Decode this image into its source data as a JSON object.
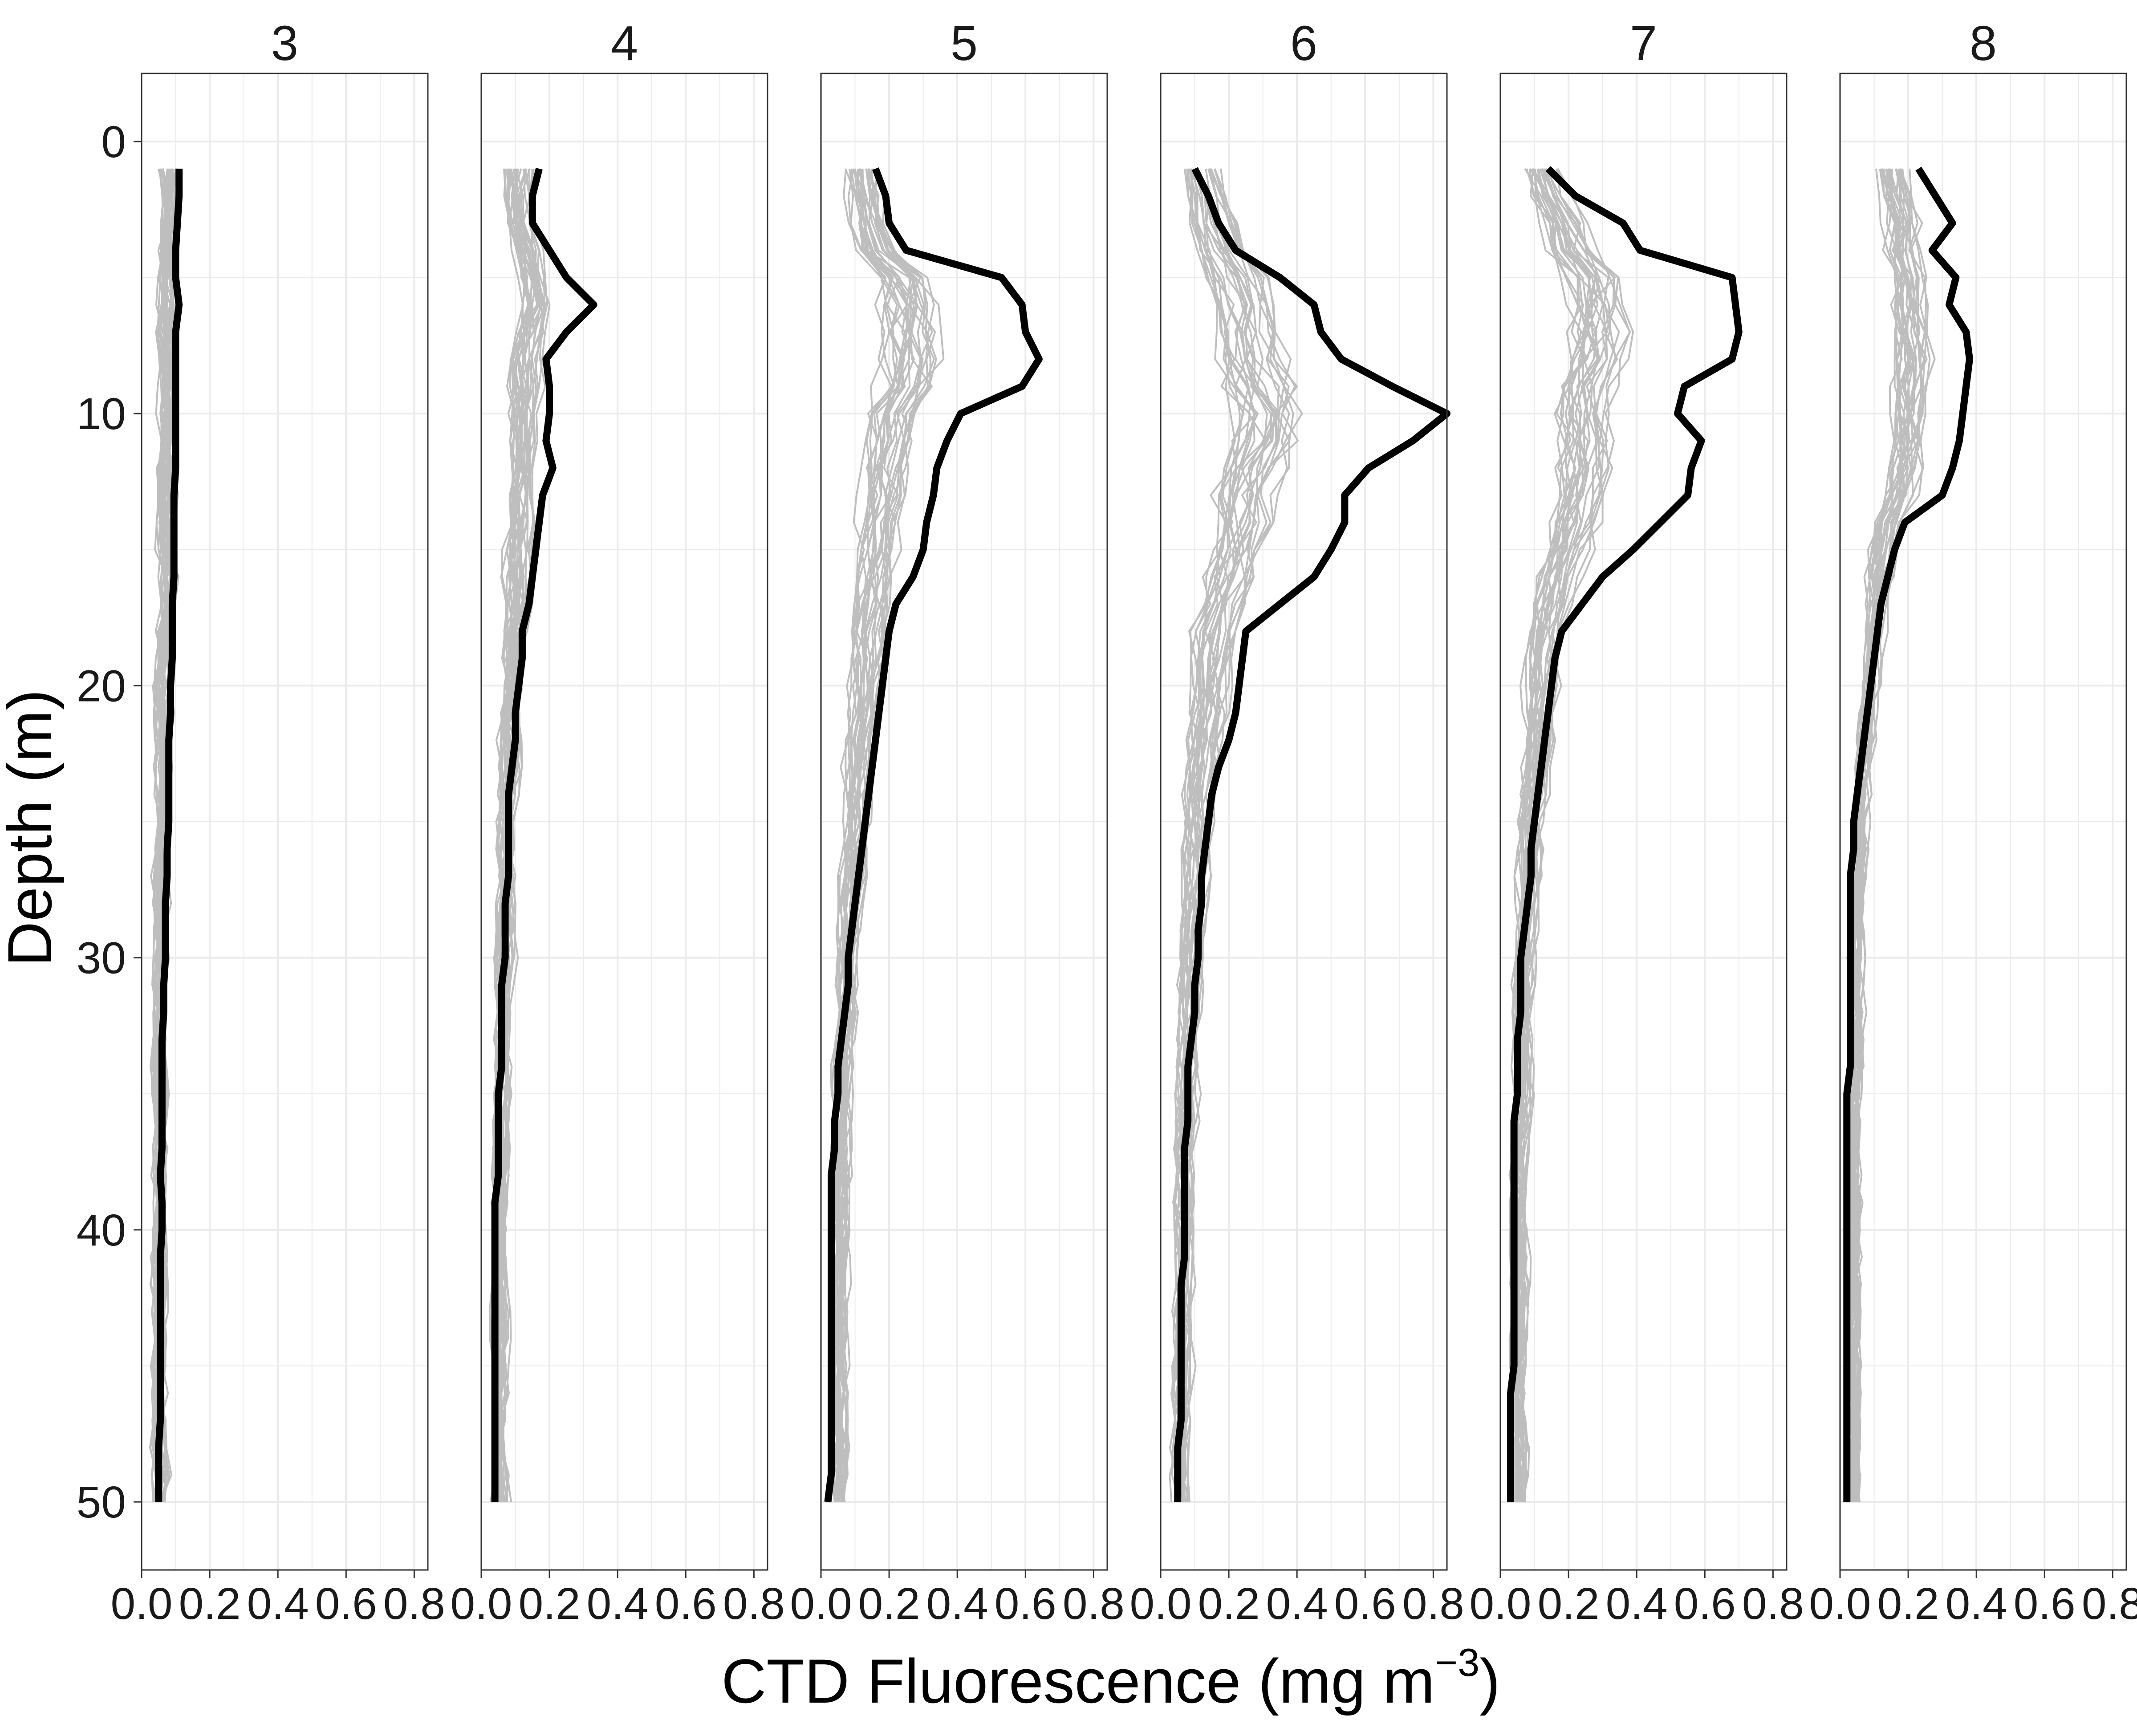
{
  "chart_data": {
    "type": "line",
    "layout": "faceted",
    "xlabel": "CTD Fluorescence (mg m",
    "xlabel_superscript": "−3",
    "xlabel_suffix": ")",
    "ylabel": "Depth (m)",
    "y_reversed": true,
    "ylim": [
      52.5,
      -2.5
    ],
    "xlim": [
      0,
      0.84
    ],
    "yticks": [
      0,
      10,
      20,
      30,
      40,
      50
    ],
    "xticks": [
      0.0,
      0.2,
      0.4,
      0.6,
      0.8
    ],
    "xtick_labels": [
      "0.0",
      "0.2",
      "0.4",
      "0.6",
      "0.8"
    ],
    "xtick_label_text": "0.02.04.06.08.0",
    "grid": true,
    "colors": {
      "mean_line": "#000000",
      "individual_profiles": "#bebebe",
      "grid": "#ebebeb",
      "panel_border": "#333333"
    },
    "depths": [
      1,
      2,
      3,
      4,
      5,
      6,
      7,
      8,
      9,
      10,
      11,
      12,
      13,
      14,
      15,
      16,
      17,
      18,
      19,
      20,
      21,
      22,
      23,
      24,
      25,
      26,
      27,
      28,
      29,
      30,
      31,
      32,
      33,
      34,
      35,
      36,
      37,
      38,
      39,
      40,
      41,
      42,
      43,
      44,
      45,
      46,
      47,
      48,
      49,
      50
    ],
    "panels": [
      {
        "label": "3",
        "mean_fluorescence": [
          0.11,
          0.11,
          0.105,
          0.1,
          0.1,
          0.11,
          0.1,
          0.1,
          0.1,
          0.1,
          0.1,
          0.1,
          0.095,
          0.095,
          0.095,
          0.095,
          0.09,
          0.09,
          0.09,
          0.085,
          0.085,
          0.08,
          0.08,
          0.08,
          0.08,
          0.075,
          0.075,
          0.07,
          0.07,
          0.07,
          0.065,
          0.065,
          0.06,
          0.06,
          0.06,
          0.06,
          0.06,
          0.055,
          0.06,
          0.06,
          0.055,
          0.055,
          0.055,
          0.055,
          0.055,
          0.055,
          0.055,
          0.05,
          0.05,
          0.05
        ],
        "profile_spread": [
          0.06,
          0.06,
          0.06,
          0.05,
          0.05,
          0.05,
          0.05,
          0.05,
          0.05,
          0.05,
          0.05,
          0.05,
          0.05,
          0.05,
          0.05,
          0.06,
          0.06,
          0.04,
          0.04,
          0.04,
          0.04,
          0.04,
          0.04,
          0.04,
          0.04,
          0.03,
          0.03,
          0.03,
          0.03,
          0.03,
          0.03,
          0.03,
          0.03,
          0.03,
          0.03,
          0.03,
          0.03,
          0.03,
          0.03,
          0.03,
          0.03,
          0.03,
          0.03,
          0.03,
          0.03,
          0.03,
          0.03,
          0.03,
          0.04,
          0.03
        ]
      },
      {
        "label": "4",
        "mean_fluorescence": [
          0.17,
          0.15,
          0.15,
          0.2,
          0.25,
          0.33,
          0.25,
          0.19,
          0.2,
          0.2,
          0.19,
          0.21,
          0.18,
          0.17,
          0.16,
          0.15,
          0.14,
          0.12,
          0.12,
          0.11,
          0.1,
          0.1,
          0.09,
          0.08,
          0.08,
          0.08,
          0.08,
          0.07,
          0.07,
          0.07,
          0.06,
          0.06,
          0.06,
          0.06,
          0.05,
          0.05,
          0.05,
          0.05,
          0.04,
          0.04,
          0.04,
          0.04,
          0.04,
          0.04,
          0.04,
          0.04,
          0.04,
          0.04,
          0.04,
          0.04
        ],
        "profile_spread": [
          0.09,
          0.09,
          0.1,
          0.12,
          0.13,
          0.13,
          0.12,
          0.11,
          0.11,
          0.1,
          0.1,
          0.1,
          0.1,
          0.1,
          0.09,
          0.09,
          0.09,
          0.08,
          0.08,
          0.08,
          0.07,
          0.07,
          0.07,
          0.06,
          0.06,
          0.06,
          0.06,
          0.06,
          0.05,
          0.05,
          0.05,
          0.05,
          0.05,
          0.05,
          0.05,
          0.04,
          0.04,
          0.04,
          0.04,
          0.04,
          0.04,
          0.04,
          0.04,
          0.04,
          0.04,
          0.04,
          0.04,
          0.04,
          0.04,
          0.04
        ]
      },
      {
        "label": "5",
        "mean_fluorescence": [
          0.16,
          0.19,
          0.2,
          0.25,
          0.53,
          0.59,
          0.6,
          0.64,
          0.59,
          0.41,
          0.37,
          0.34,
          0.33,
          0.31,
          0.3,
          0.27,
          0.22,
          0.2,
          0.19,
          0.18,
          0.17,
          0.16,
          0.15,
          0.14,
          0.13,
          0.12,
          0.11,
          0.1,
          0.09,
          0.08,
          0.08,
          0.07,
          0.06,
          0.05,
          0.05,
          0.04,
          0.04,
          0.03,
          0.03,
          0.03,
          0.03,
          0.03,
          0.03,
          0.03,
          0.03,
          0.03,
          0.03,
          0.03,
          0.03,
          0.02
        ],
        "profile_spread": [
          0.1,
          0.11,
          0.12,
          0.14,
          0.17,
          0.18,
          0.19,
          0.19,
          0.18,
          0.17,
          0.16,
          0.15,
          0.15,
          0.14,
          0.14,
          0.13,
          0.13,
          0.12,
          0.12,
          0.11,
          0.11,
          0.1,
          0.1,
          0.09,
          0.09,
          0.08,
          0.08,
          0.07,
          0.07,
          0.06,
          0.06,
          0.06,
          0.05,
          0.05,
          0.05,
          0.05,
          0.05,
          0.05,
          0.04,
          0.04,
          0.04,
          0.04,
          0.04,
          0.04,
          0.04,
          0.04,
          0.04,
          0.04,
          0.04,
          0.04
        ]
      },
      {
        "label": "6",
        "mean_fluorescence": [
          0.1,
          0.14,
          0.17,
          0.22,
          0.35,
          0.45,
          0.47,
          0.53,
          0.68,
          0.84,
          0.74,
          0.61,
          0.54,
          0.54,
          0.5,
          0.45,
          0.35,
          0.25,
          0.24,
          0.23,
          0.22,
          0.2,
          0.17,
          0.15,
          0.14,
          0.13,
          0.12,
          0.12,
          0.11,
          0.11,
          0.1,
          0.1,
          0.09,
          0.08,
          0.08,
          0.08,
          0.07,
          0.07,
          0.07,
          0.07,
          0.07,
          0.06,
          0.06,
          0.06,
          0.06,
          0.06,
          0.06,
          0.05,
          0.05,
          0.05
        ],
        "profile_spread": [
          0.12,
          0.14,
          0.16,
          0.18,
          0.21,
          0.22,
          0.22,
          0.22,
          0.22,
          0.21,
          0.21,
          0.2,
          0.19,
          0.18,
          0.17,
          0.16,
          0.15,
          0.14,
          0.13,
          0.12,
          0.12,
          0.11,
          0.11,
          0.1,
          0.1,
          0.09,
          0.09,
          0.08,
          0.08,
          0.07,
          0.07,
          0.07,
          0.06,
          0.06,
          0.06,
          0.06,
          0.05,
          0.05,
          0.05,
          0.05,
          0.05,
          0.05,
          0.05,
          0.05,
          0.05,
          0.04,
          0.04,
          0.04,
          0.04,
          0.04
        ]
      },
      {
        "label": "7",
        "mean_fluorescence": [
          0.14,
          0.22,
          0.36,
          0.41,
          0.68,
          0.69,
          0.7,
          0.68,
          0.54,
          0.52,
          0.59,
          0.56,
          0.55,
          0.47,
          0.39,
          0.3,
          0.24,
          0.18,
          0.16,
          0.15,
          0.14,
          0.13,
          0.12,
          0.11,
          0.1,
          0.09,
          0.09,
          0.08,
          0.07,
          0.06,
          0.06,
          0.06,
          0.05,
          0.05,
          0.05,
          0.04,
          0.04,
          0.04,
          0.04,
          0.04,
          0.04,
          0.04,
          0.04,
          0.04,
          0.04,
          0.03,
          0.03,
          0.03,
          0.03,
          0.03
        ],
        "profile_spread": [
          0.11,
          0.13,
          0.15,
          0.17,
          0.19,
          0.2,
          0.2,
          0.2,
          0.19,
          0.19,
          0.18,
          0.18,
          0.17,
          0.16,
          0.15,
          0.14,
          0.13,
          0.12,
          0.11,
          0.11,
          0.1,
          0.1,
          0.09,
          0.09,
          0.08,
          0.08,
          0.07,
          0.07,
          0.06,
          0.06,
          0.06,
          0.05,
          0.05,
          0.05,
          0.05,
          0.05,
          0.04,
          0.04,
          0.04,
          0.04,
          0.04,
          0.04,
          0.04,
          0.04,
          0.04,
          0.04,
          0.04,
          0.04,
          0.04,
          0.04
        ]
      },
      {
        "label": "8",
        "mean_fluorescence": [
          0.23,
          0.28,
          0.33,
          0.27,
          0.34,
          0.32,
          0.37,
          0.38,
          0.37,
          0.36,
          0.35,
          0.33,
          0.3,
          0.19,
          0.16,
          0.14,
          0.12,
          0.11,
          0.1,
          0.09,
          0.08,
          0.07,
          0.06,
          0.05,
          0.04,
          0.04,
          0.03,
          0.03,
          0.03,
          0.03,
          0.03,
          0.03,
          0.03,
          0.03,
          0.02,
          0.02,
          0.02,
          0.02,
          0.02,
          0.02,
          0.02,
          0.02,
          0.02,
          0.02,
          0.02,
          0.02,
          0.02,
          0.02,
          0.02,
          0.02
        ],
        "profile_spread": [
          0.12,
          0.13,
          0.14,
          0.15,
          0.16,
          0.16,
          0.16,
          0.17,
          0.17,
          0.16,
          0.15,
          0.14,
          0.13,
          0.12,
          0.11,
          0.1,
          0.09,
          0.08,
          0.07,
          0.07,
          0.06,
          0.06,
          0.05,
          0.05,
          0.04,
          0.04,
          0.04,
          0.03,
          0.03,
          0.03,
          0.03,
          0.03,
          0.03,
          0.03,
          0.02,
          0.02,
          0.02,
          0.02,
          0.02,
          0.02,
          0.02,
          0.02,
          0.02,
          0.02,
          0.02,
          0.02,
          0.02,
          0.02,
          0.02,
          0.02
        ]
      }
    ]
  }
}
